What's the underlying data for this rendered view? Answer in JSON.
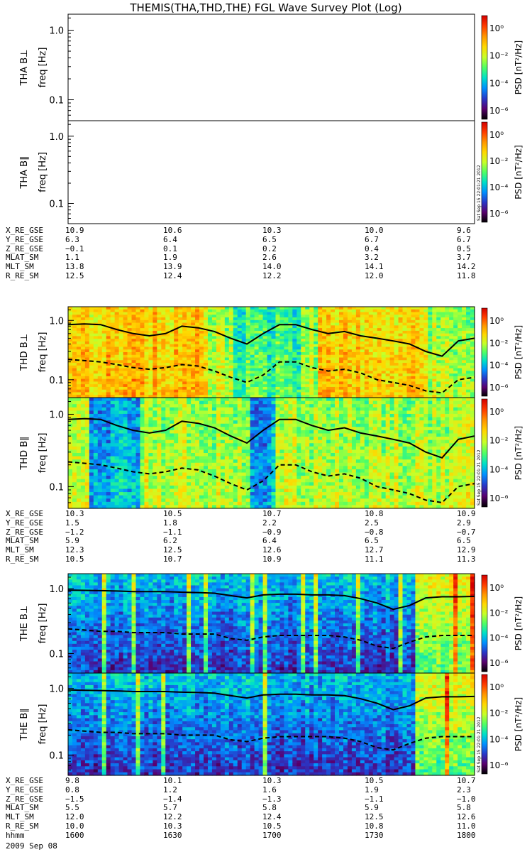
{
  "title": "THEMIS(THA,THD,THE) FGL Wave Survey Plot (Log)",
  "colors": {
    "axis": "#000000",
    "background": "#ffffff"
  },
  "colorbar": {
    "label": "PSD [nT²/Hz]",
    "ticks": [
      "10⁰",
      "10⁻²",
      "10⁻⁴",
      "10⁻⁶"
    ],
    "stops": [
      "#d40000",
      "#ff3c00",
      "#ff9600",
      "#ffd800",
      "#c8ff28",
      "#50ff64",
      "#00e0c8",
      "#0090ff",
      "#2838c8",
      "#5a006e",
      "#000000"
    ],
    "stamp": "Sat Sep 15 22:01:21 2012"
  },
  "y_ticks": [
    "1.0",
    "0.1"
  ],
  "freq_label": "freq [Hz]",
  "ephemeris_labels": [
    "X_RE_GSE",
    "Y_RE_GSE",
    "Z_RE_GSE",
    "MLAT_SM",
    "MLT_SM",
    "R_RE_SM"
  ],
  "ephemeris_labels_last": [
    "X_RE_GSE",
    "Y_RE_GSE",
    "Z_RE_GSE",
    "MLAT_SM",
    "MLT_SM",
    "R_RE_SM",
    "hhmm"
  ],
  "ephemeris": {
    "tha": [
      [
        "10.9",
        "10.6",
        "10.3",
        "10.0",
        "9.6"
      ],
      [
        "6.3",
        "6.4",
        "6.5",
        "6.7",
        "6.7"
      ],
      [
        "−0.1",
        "0.1",
        "0.2",
        "0.4",
        "0.5"
      ],
      [
        "1.1",
        "1.9",
        "2.6",
        "3.2",
        "3.7"
      ],
      [
        "13.8",
        "13.9",
        "14.0",
        "14.1",
        "14.2"
      ],
      [
        "12.5",
        "12.4",
        "12.2",
        "12.0",
        "11.8"
      ]
    ],
    "thd": [
      [
        "10.3",
        "10.5",
        "10.7",
        "10.8",
        "10.9"
      ],
      [
        "1.5",
        "1.8",
        "2.2",
        "2.5",
        "2.9"
      ],
      [
        "−1.2",
        "−1.1",
        "−0.9",
        "−0.8",
        "−0.7"
      ],
      [
        "5.9",
        "6.2",
        "6.4",
        "6.5",
        "6.5"
      ],
      [
        "12.3",
        "12.5",
        "12.6",
        "12.7",
        "12.9"
      ],
      [
        "10.5",
        "10.7",
        "10.9",
        "11.1",
        "11.3"
      ]
    ],
    "the": [
      [
        "9.8",
        "10.1",
        "10.3",
        "10.5",
        "10.7"
      ],
      [
        "0.8",
        "1.2",
        "1.6",
        "1.9",
        "2.3"
      ],
      [
        "−1.5",
        "−1.4",
        "−1.3",
        "−1.1",
        "−1.0"
      ],
      [
        "5.5",
        "5.7",
        "5.8",
        "5.9",
        "5.8"
      ],
      [
        "12.0",
        "12.2",
        "12.4",
        "12.5",
        "12.6"
      ],
      [
        "10.0",
        "10.3",
        "10.5",
        "10.8",
        "11.0"
      ],
      [
        "1600",
        "1630",
        "1700",
        "1730",
        "1800"
      ]
    ]
  },
  "date": "2009 Sep 08",
  "chart_data": [
    {
      "type": "heatmap",
      "probe": "THA",
      "ylabel": "THA B⊥",
      "data_present": false,
      "ylim_hz": [
        0.05,
        1.7
      ],
      "y_scale": "log"
    },
    {
      "type": "heatmap",
      "probe": "THA",
      "ylabel": "THA B∥",
      "data_present": false,
      "ylim_hz": [
        0.05,
        1.7
      ],
      "y_scale": "log"
    },
    {
      "type": "heatmap",
      "probe": "THD",
      "ylabel": "THD B⊥",
      "data_present": true,
      "ylim_hz": [
        0.05,
        1.7
      ],
      "y_scale": "log",
      "time_hhmm": [
        1600,
        1630,
        1700,
        1730,
        1800
      ],
      "solid_line_hz": [
        0.85,
        0.87,
        0.85,
        0.7,
        0.6,
        0.55,
        0.6,
        0.8,
        0.75,
        0.65,
        0.5,
        0.4,
        0.6,
        0.85,
        0.85,
        0.7,
        0.6,
        0.65,
        0.55,
        0.5,
        0.45,
        0.4,
        0.3,
        0.25,
        0.45,
        0.5
      ],
      "dashed_line_hz": [
        0.22,
        0.21,
        0.2,
        0.18,
        0.16,
        0.15,
        0.16,
        0.18,
        0.17,
        0.14,
        0.11,
        0.09,
        0.12,
        0.2,
        0.2,
        0.16,
        0.14,
        0.15,
        0.13,
        0.1,
        0.09,
        0.08,
        0.065,
        0.06,
        0.1,
        0.11
      ],
      "intensity": {
        "log_psd_range": [
          -6,
          1
        ],
        "peak_regions_hhmm": [
          [
            1600,
            1640
          ],
          [
            1713,
            1745
          ]
        ],
        "lower_activity_hhmm": [
          [
            1648,
            1708
          ]
        ]
      }
    },
    {
      "type": "heatmap",
      "probe": "THD",
      "ylabel": "THD B∥",
      "data_present": true,
      "ylim_hz": [
        0.05,
        1.7
      ],
      "y_scale": "log",
      "time_hhmm": [
        1600,
        1630,
        1700,
        1730,
        1800
      ],
      "solid_line_hz": [
        0.85,
        0.87,
        0.85,
        0.7,
        0.6,
        0.55,
        0.6,
        0.8,
        0.75,
        0.65,
        0.5,
        0.4,
        0.6,
        0.85,
        0.85,
        0.7,
        0.6,
        0.65,
        0.55,
        0.5,
        0.45,
        0.4,
        0.3,
        0.25,
        0.45,
        0.5
      ],
      "dashed_line_hz": [
        0.22,
        0.21,
        0.2,
        0.18,
        0.16,
        0.15,
        0.16,
        0.18,
        0.17,
        0.14,
        0.11,
        0.09,
        0.12,
        0.2,
        0.2,
        0.16,
        0.14,
        0.15,
        0.13,
        0.1,
        0.09,
        0.08,
        0.065,
        0.06,
        0.1,
        0.11
      ],
      "intensity": {
        "log_psd_range": [
          -6,
          1
        ],
        "low_region_hhmm": [
          [
            1606,
            1620
          ],
          [
            1653,
            1700
          ]
        ]
      }
    },
    {
      "type": "heatmap",
      "probe": "THE",
      "ylabel": "THE B⊥",
      "data_present": true,
      "ylim_hz": [
        0.05,
        1.7
      ],
      "y_scale": "log",
      "time_hhmm": [
        1600,
        1630,
        1700,
        1730,
        1800
      ],
      "solid_line_hz": [
        0.95,
        0.94,
        0.93,
        0.92,
        0.9,
        0.9,
        0.9,
        0.88,
        0.87,
        0.85,
        0.78,
        0.72,
        0.8,
        0.82,
        0.82,
        0.8,
        0.8,
        0.78,
        0.7,
        0.6,
        0.48,
        0.55,
        0.72,
        0.75,
        0.75,
        0.76
      ],
      "dashed_line_hz": [
        0.24,
        0.23,
        0.22,
        0.22,
        0.21,
        0.21,
        0.21,
        0.2,
        0.2,
        0.2,
        0.17,
        0.16,
        0.18,
        0.19,
        0.19,
        0.19,
        0.19,
        0.18,
        0.16,
        0.13,
        0.12,
        0.15,
        0.18,
        0.19,
        0.19,
        0.19
      ],
      "intensity": {
        "log_psd_range": [
          -6,
          1
        ],
        "active_region_hhmm": [
          [
            1742,
            1800
          ]
        ]
      }
    },
    {
      "type": "heatmap",
      "probe": "THE",
      "ylabel": "THE B∥",
      "data_present": true,
      "ylim_hz": [
        0.05,
        1.7
      ],
      "y_scale": "log",
      "time_hhmm": [
        1600,
        1630,
        1700,
        1730,
        1800
      ],
      "solid_line_hz": [
        0.95,
        0.94,
        0.93,
        0.92,
        0.9,
        0.9,
        0.9,
        0.88,
        0.87,
        0.85,
        0.78,
        0.72,
        0.8,
        0.82,
        0.82,
        0.8,
        0.8,
        0.78,
        0.7,
        0.6,
        0.48,
        0.55,
        0.72,
        0.75,
        0.75,
        0.76
      ],
      "dashed_line_hz": [
        0.24,
        0.23,
        0.22,
        0.22,
        0.21,
        0.21,
        0.21,
        0.2,
        0.2,
        0.2,
        0.17,
        0.16,
        0.18,
        0.19,
        0.19,
        0.19,
        0.19,
        0.18,
        0.16,
        0.13,
        0.12,
        0.15,
        0.18,
        0.19,
        0.19,
        0.19
      ],
      "intensity": {
        "log_psd_range": [
          -6,
          1
        ],
        "active_region_hhmm": [
          [
            1742,
            1800
          ]
        ]
      }
    }
  ]
}
